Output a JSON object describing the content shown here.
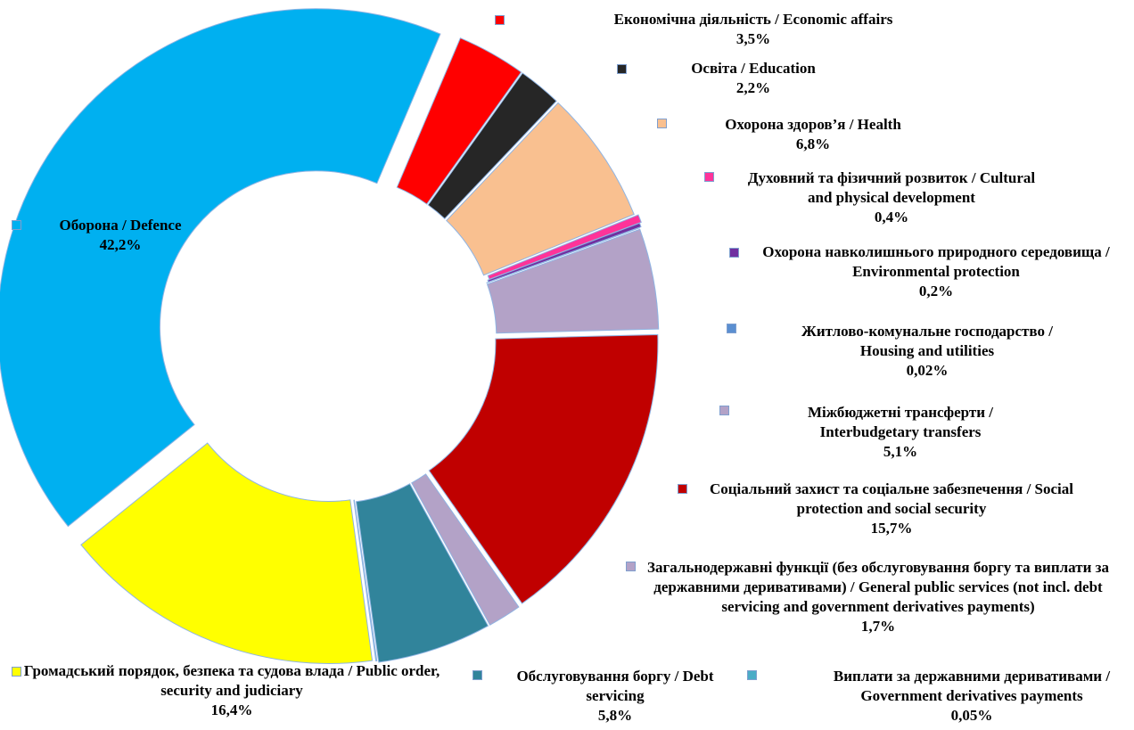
{
  "chart_data": {
    "type": "donut",
    "categories": [
      "Економічна діяльність / Economic affairs",
      "Освіта / Education",
      "Охорона здоров’я / Health",
      "Духовний та фізичний розвиток / Cultural and physical development",
      "Охорона навколишнього природного середовища / Environmental protection",
      "Житлово-комунальне господарство / Housing and utilities",
      "Міжбюджетні трансферти / Interbudgetary transfers",
      "Соціальний захист та соціальне забезпечення / Social protection and social security",
      "Загальнодержавні функції (без обслуговування боргу та виплати за державними деривативами) / General public services (not incl. debt servicing and government derivatives payments)",
      "Обслуговування боргу / Debt servicing",
      "Виплати за державними деривативами / Government derivatives payments",
      "Громадський порядок, безпека та судова влада / Public order, security and judiciary",
      "Оборона / Defence"
    ],
    "values": [
      3.5,
      2.2,
      6.8,
      0.4,
      0.2,
      0.02,
      5.1,
      15.7,
      1.7,
      5.8,
      0.05,
      16.4,
      42.2
    ],
    "value_labels": [
      "3,5%",
      "2,2%",
      "6,8%",
      "0,4%",
      "0,2%",
      "0,02%",
      "5,1%",
      "15,7%",
      "1,7%",
      "5,8%",
      "0,05%",
      "16,4%",
      "42,2%"
    ],
    "colors": [
      "#ff0000",
      "#262626",
      "#f9c090",
      "#ff3399",
      "#7030a0",
      "#5b8fd1",
      "#b3a2c7",
      "#c00000",
      "#b3a2c7",
      "#31849b",
      "#4bacc6",
      "#ffff00",
      "#00b0f0"
    ]
  }
}
